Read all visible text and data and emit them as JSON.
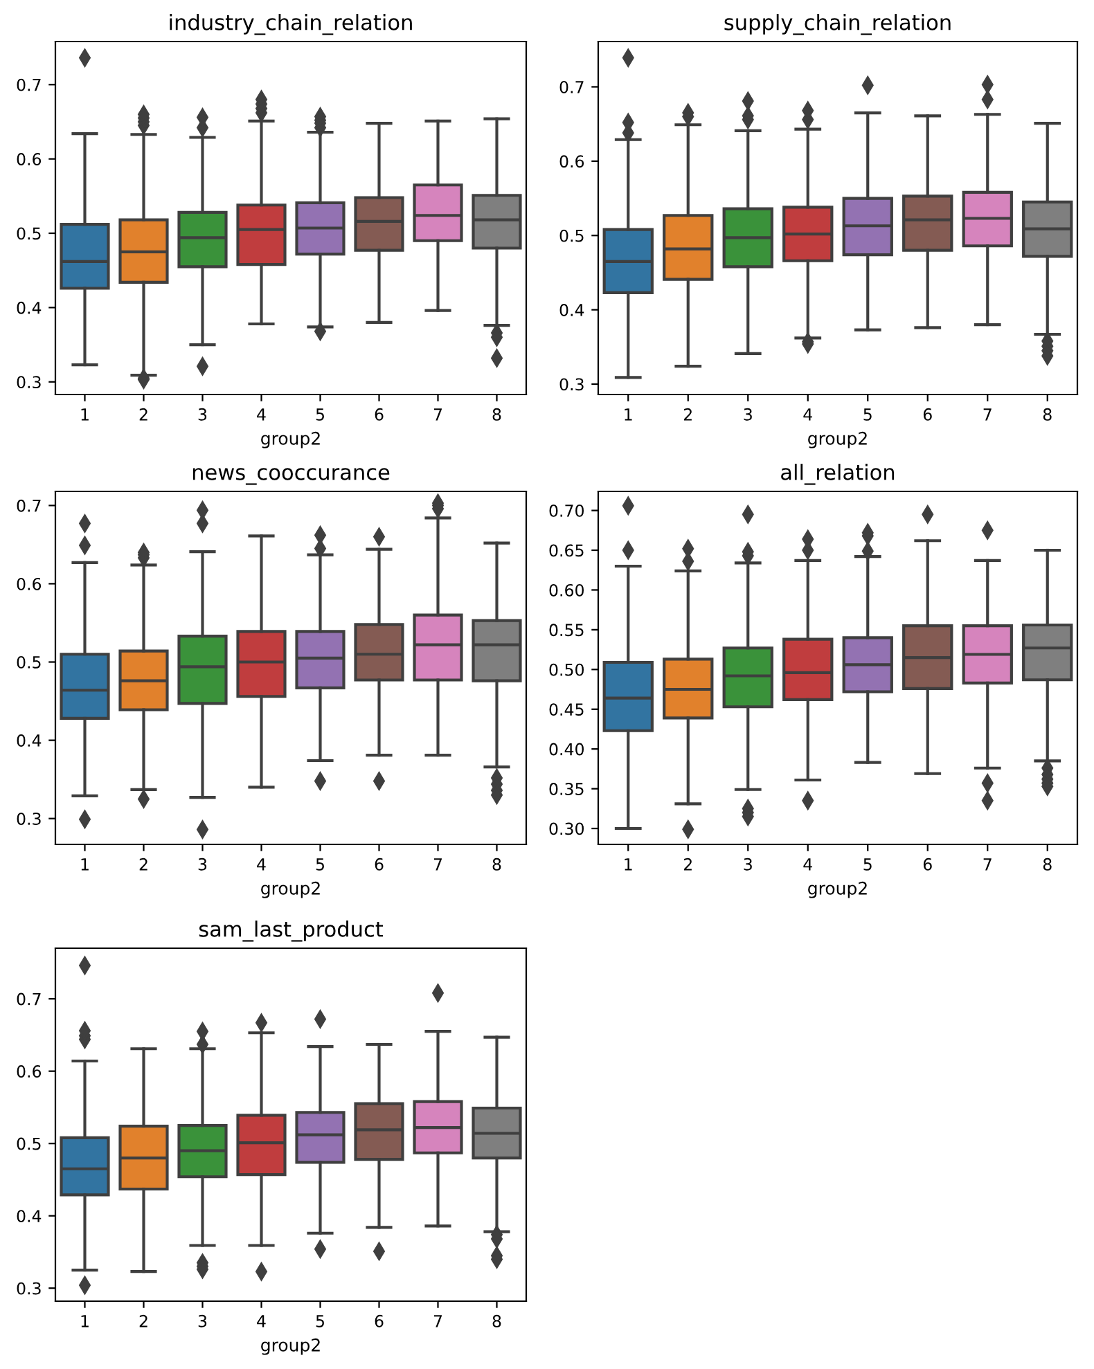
{
  "chart_data": [
    {
      "type": "box",
      "title": "industry_chain_relation",
      "xlabel": "group2",
      "categories": [
        "1",
        "2",
        "3",
        "4",
        "5",
        "6",
        "7",
        "8"
      ],
      "colors": [
        "#3274a1",
        "#e1812c",
        "#3a923a",
        "#c03d3e",
        "#9372b2",
        "#845b53",
        "#d684bd",
        "#7f7f7f"
      ],
      "marker": "diamond",
      "ylim": [
        0.283,
        0.758
      ],
      "yticks": [
        0.3,
        0.4,
        0.5,
        0.6,
        0.7
      ],
      "boxes": [
        {
          "low": 0.323,
          "q1": 0.426,
          "median": 0.462,
          "q3": 0.512,
          "high": 0.634,
          "outliers": [
            0.736
          ]
        },
        {
          "low": 0.309,
          "q1": 0.434,
          "median": 0.475,
          "q3": 0.518,
          "high": 0.633,
          "outliers": [
            0.645,
            0.65,
            0.655,
            0.66,
            0.305,
            0.303
          ]
        },
        {
          "low": 0.35,
          "q1": 0.455,
          "median": 0.494,
          "q3": 0.528,
          "high": 0.629,
          "outliers": [
            0.642,
            0.656,
            0.321
          ]
        },
        {
          "low": 0.378,
          "q1": 0.458,
          "median": 0.505,
          "q3": 0.538,
          "high": 0.651,
          "outliers": [
            0.662,
            0.668,
            0.674,
            0.68
          ]
        },
        {
          "low": 0.374,
          "q1": 0.472,
          "median": 0.507,
          "q3": 0.541,
          "high": 0.636,
          "outliers": [
            0.642,
            0.648,
            0.652,
            0.657,
            0.368
          ]
        },
        {
          "low": 0.38,
          "q1": 0.477,
          "median": 0.516,
          "q3": 0.548,
          "high": 0.648
        },
        {
          "low": 0.396,
          "q1": 0.49,
          "median": 0.524,
          "q3": 0.565,
          "high": 0.651
        },
        {
          "low": 0.376,
          "q1": 0.48,
          "median": 0.518,
          "q3": 0.551,
          "high": 0.654,
          "outliers": [
            0.366,
            0.36,
            0.332
          ]
        }
      ]
    },
    {
      "type": "box",
      "title": "supply_chain_relation",
      "xlabel": "group2",
      "categories": [
        "1",
        "2",
        "3",
        "4",
        "5",
        "6",
        "7",
        "8"
      ],
      "colors": [
        "#3274a1",
        "#e1812c",
        "#3a923a",
        "#c03d3e",
        "#9372b2",
        "#845b53",
        "#d684bd",
        "#7f7f7f"
      ],
      "marker": "diamond",
      "ylim": [
        0.286,
        0.761
      ],
      "yticks": [
        0.3,
        0.4,
        0.5,
        0.6,
        0.7
      ],
      "boxes": [
        {
          "low": 0.309,
          "q1": 0.423,
          "median": 0.465,
          "q3": 0.508,
          "high": 0.629,
          "outliers": [
            0.638,
            0.652,
            0.739
          ]
        },
        {
          "low": 0.324,
          "q1": 0.441,
          "median": 0.482,
          "q3": 0.527,
          "high": 0.649,
          "outliers": [
            0.66,
            0.665
          ]
        },
        {
          "low": 0.341,
          "q1": 0.458,
          "median": 0.497,
          "q3": 0.536,
          "high": 0.641,
          "outliers": [
            0.656,
            0.661,
            0.681
          ]
        },
        {
          "low": 0.362,
          "q1": 0.466,
          "median": 0.502,
          "q3": 0.538,
          "high": 0.643,
          "outliers": [
            0.656,
            0.668,
            0.357,
            0.354
          ]
        },
        {
          "low": 0.373,
          "q1": 0.474,
          "median": 0.513,
          "q3": 0.55,
          "high": 0.665,
          "outliers": [
            0.702
          ]
        },
        {
          "low": 0.376,
          "q1": 0.48,
          "median": 0.521,
          "q3": 0.553,
          "high": 0.661
        },
        {
          "low": 0.38,
          "q1": 0.486,
          "median": 0.523,
          "q3": 0.558,
          "high": 0.663,
          "outliers": [
            0.683,
            0.703
          ]
        },
        {
          "low": 0.367,
          "q1": 0.472,
          "median": 0.509,
          "q3": 0.545,
          "high": 0.651,
          "outliers": [
            0.358,
            0.351,
            0.345,
            0.338
          ]
        }
      ]
    },
    {
      "type": "box",
      "title": "news_cooccurance",
      "xlabel": "group2",
      "categories": [
        "1",
        "2",
        "3",
        "4",
        "5",
        "6",
        "7",
        "8"
      ],
      "colors": [
        "#3274a1",
        "#e1812c",
        "#3a923a",
        "#c03d3e",
        "#9372b2",
        "#845b53",
        "#d684bd",
        "#7f7f7f"
      ],
      "marker": "diamond",
      "ylim": [
        0.267,
        0.718
      ],
      "yticks": [
        0.3,
        0.4,
        0.5,
        0.6,
        0.7
      ],
      "boxes": [
        {
          "low": 0.329,
          "q1": 0.428,
          "median": 0.464,
          "q3": 0.51,
          "high": 0.627,
          "outliers": [
            0.649,
            0.677,
            0.299
          ]
        },
        {
          "low": 0.337,
          "q1": 0.439,
          "median": 0.476,
          "q3": 0.514,
          "high": 0.624,
          "outliers": [
            0.633,
            0.637,
            0.64,
            0.325
          ]
        },
        {
          "low": 0.327,
          "q1": 0.447,
          "median": 0.494,
          "q3": 0.533,
          "high": 0.641,
          "outliers": [
            0.677,
            0.694,
            0.286
          ]
        },
        {
          "low": 0.34,
          "q1": 0.456,
          "median": 0.5,
          "q3": 0.539,
          "high": 0.661
        },
        {
          "low": 0.374,
          "q1": 0.467,
          "median": 0.505,
          "q3": 0.539,
          "high": 0.637,
          "outliers": [
            0.645,
            0.662,
            0.348
          ]
        },
        {
          "low": 0.381,
          "q1": 0.477,
          "median": 0.51,
          "q3": 0.548,
          "high": 0.644,
          "outliers": [
            0.66,
            0.348
          ]
        },
        {
          "low": 0.381,
          "q1": 0.477,
          "median": 0.522,
          "q3": 0.56,
          "high": 0.684,
          "outliers": [
            0.696,
            0.7,
            0.703
          ]
        },
        {
          "low": 0.366,
          "q1": 0.476,
          "median": 0.522,
          "q3": 0.553,
          "high": 0.652,
          "outliers": [
            0.352,
            0.344,
            0.336,
            0.33
          ]
        }
      ]
    },
    {
      "type": "box",
      "title": "all_relation",
      "xlabel": "group2",
      "categories": [
        "1",
        "2",
        "3",
        "4",
        "5",
        "6",
        "7",
        "8"
      ],
      "colors": [
        "#3274a1",
        "#e1812c",
        "#3a923a",
        "#c03d3e",
        "#9372b2",
        "#845b53",
        "#d684bd",
        "#7f7f7f"
      ],
      "marker": "diamond",
      "ylim": [
        0.28,
        0.724
      ],
      "yticks": [
        {
          "value": 0.3,
          "label": "0.30"
        },
        {
          "value": 0.35,
          "label": "0.35"
        },
        {
          "value": 0.4,
          "label": "0.40"
        },
        {
          "value": 0.45,
          "label": "0.45"
        },
        {
          "value": 0.5,
          "label": "0.50"
        },
        {
          "value": 0.55,
          "label": "0.55"
        },
        {
          "value": 0.6,
          "label": "0.60"
        },
        {
          "value": 0.65,
          "label": "0.65"
        },
        {
          "value": 0.7,
          "label": "0.70"
        }
      ],
      "boxes": [
        {
          "low": 0.3,
          "q1": 0.423,
          "median": 0.464,
          "q3": 0.509,
          "high": 0.63,
          "outliers": [
            0.65,
            0.706
          ]
        },
        {
          "low": 0.331,
          "q1": 0.439,
          "median": 0.475,
          "q3": 0.513,
          "high": 0.624,
          "outliers": [
            0.636,
            0.652,
            0.299
          ]
        },
        {
          "low": 0.349,
          "q1": 0.453,
          "median": 0.492,
          "q3": 0.527,
          "high": 0.634,
          "outliers": [
            0.643,
            0.648,
            0.695,
            0.325,
            0.32,
            0.315
          ]
        },
        {
          "low": 0.361,
          "q1": 0.462,
          "median": 0.496,
          "q3": 0.538,
          "high": 0.637,
          "outliers": [
            0.65,
            0.664,
            0.335
          ]
        },
        {
          "low": 0.383,
          "q1": 0.472,
          "median": 0.506,
          "q3": 0.54,
          "high": 0.642,
          "outliers": [
            0.649,
            0.668,
            0.672
          ]
        },
        {
          "low": 0.369,
          "q1": 0.476,
          "median": 0.515,
          "q3": 0.555,
          "high": 0.662,
          "outliers": [
            0.695
          ]
        },
        {
          "low": 0.376,
          "q1": 0.483,
          "median": 0.519,
          "q3": 0.555,
          "high": 0.637,
          "outliers": [
            0.675,
            0.357,
            0.335
          ]
        },
        {
          "low": 0.385,
          "q1": 0.487,
          "median": 0.527,
          "q3": 0.556,
          "high": 0.65,
          "outliers": [
            0.376,
            0.368,
            0.362,
            0.357,
            0.353
          ]
        }
      ]
    },
    {
      "type": "box",
      "title": "sam_last_product",
      "xlabel": "group2",
      "categories": [
        "1",
        "2",
        "3",
        "4",
        "5",
        "6",
        "7",
        "8"
      ],
      "colors": [
        "#3274a1",
        "#e1812c",
        "#3a923a",
        "#c03d3e",
        "#9372b2",
        "#845b53",
        "#d684bd",
        "#7f7f7f"
      ],
      "marker": "diamond",
      "ylim": [
        0.282,
        0.77
      ],
      "yticks": [
        0.3,
        0.4,
        0.5,
        0.6,
        0.7
      ],
      "boxes": [
        {
          "low": 0.325,
          "q1": 0.429,
          "median": 0.465,
          "q3": 0.508,
          "high": 0.614,
          "outliers": [
            0.644,
            0.649,
            0.656,
            0.746,
            0.304
          ]
        },
        {
          "low": 0.323,
          "q1": 0.437,
          "median": 0.48,
          "q3": 0.524,
          "high": 0.631
        },
        {
          "low": 0.359,
          "q1": 0.454,
          "median": 0.49,
          "q3": 0.525,
          "high": 0.631,
          "outliers": [
            0.637,
            0.655,
            0.335,
            0.33,
            0.326
          ]
        },
        {
          "low": 0.359,
          "q1": 0.457,
          "median": 0.501,
          "q3": 0.539,
          "high": 0.653,
          "outliers": [
            0.667,
            0.323
          ]
        },
        {
          "low": 0.376,
          "q1": 0.474,
          "median": 0.512,
          "q3": 0.543,
          "high": 0.634,
          "outliers": [
            0.672,
            0.354
          ]
        },
        {
          "low": 0.384,
          "q1": 0.478,
          "median": 0.519,
          "q3": 0.555,
          "high": 0.637,
          "outliers": [
            0.351
          ]
        },
        {
          "low": 0.386,
          "q1": 0.487,
          "median": 0.522,
          "q3": 0.558,
          "high": 0.655,
          "outliers": [
            0.708
          ]
        },
        {
          "low": 0.378,
          "q1": 0.48,
          "median": 0.514,
          "q3": 0.549,
          "high": 0.647,
          "outliers": [
            0.374,
            0.368,
            0.345,
            0.34
          ]
        }
      ]
    }
  ]
}
